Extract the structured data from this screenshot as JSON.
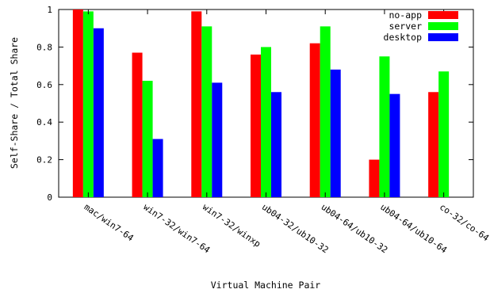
{
  "chart_data": {
    "type": "bar",
    "title": "",
    "xlabel": "Virtual Machine Pair",
    "ylabel": "Self-Share / Total Share",
    "ylim": [
      0,
      1
    ],
    "yticks": [
      "0",
      "0.2",
      "0.4",
      "0.6",
      "0.8",
      "1"
    ],
    "ytick_values": [
      0,
      0.2,
      0.4,
      0.6,
      0.8,
      1
    ],
    "categories": [
      "mac/win7-64",
      "win7-32/win7-64",
      "win7-32/winxp",
      "ub04-32/ub10-32",
      "ub04-64/ub10-32",
      "ub04-64/ub10-64",
      "co-32/co-64"
    ],
    "series": [
      {
        "name": "no-app",
        "color": "#ff0000",
        "values": [
          1.0,
          0.77,
          0.99,
          0.76,
          0.82,
          0.2,
          0.56
        ]
      },
      {
        "name": "server",
        "color": "#00ff00",
        "values": [
          0.99,
          0.62,
          0.91,
          0.8,
          0.91,
          0.75,
          0.67
        ]
      },
      {
        "name": "desktop",
        "color": "#0000ff",
        "values": [
          0.9,
          0.31,
          0.61,
          0.56,
          0.68,
          0.55,
          null
        ]
      }
    ],
    "grid": false,
    "legend_position": "top-right"
  }
}
